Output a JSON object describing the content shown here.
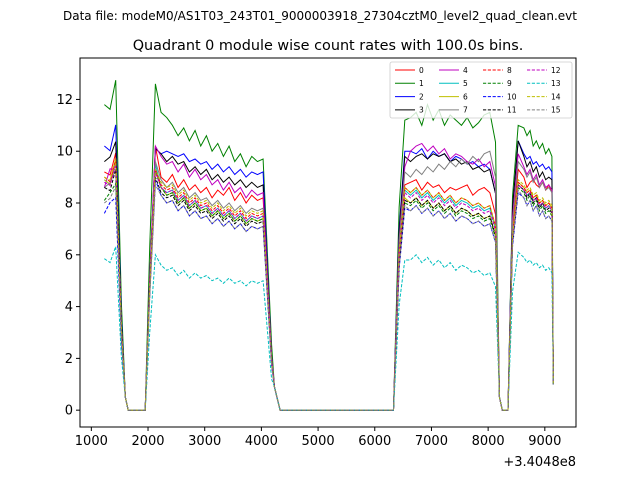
{
  "suptitle": "Data file: modeM0/AS1T03_243T01_9000003918_27304cztM0_level2_quad_clean.evt",
  "chart_data": {
    "type": "line",
    "title": "Quadrant 0 module wise count rates with 100.0s bins.",
    "xlabel": "",
    "ylabel": "",
    "offset_label": "+3.4048e8",
    "xlim": [
      800,
      9550
    ],
    "ylim": [
      -0.65,
      13.6
    ],
    "x_ticks": [
      1000,
      2000,
      3000,
      4000,
      5000,
      6000,
      7000,
      8000,
      9000
    ],
    "y_ticks": [
      0,
      2,
      4,
      6,
      8,
      10,
      12
    ],
    "grid": false,
    "legend_position": "top-right",
    "legend_columns": 4,
    "series_colors": [
      "#ff0000",
      "#008000",
      "#0000ff",
      "#000000",
      "#bf00bf",
      "#00bfbf",
      "#bfbf00",
      "#808080",
      "#ff0000",
      "#008000",
      "#0000ff",
      "#000000",
      "#bf00bf",
      "#00bfbf",
      "#bfbf00",
      "#808080"
    ],
    "series_dashed": [
      false,
      false,
      false,
      false,
      false,
      false,
      false,
      false,
      true,
      true,
      true,
      true,
      true,
      true,
      true,
      true
    ],
    "segments": [
      {
        "x_start": 1230,
        "dx": 100,
        "bases": [
          9.2,
          11.8,
          10.2,
          9.6,
          8.6,
          8.9,
          8.9,
          8.6,
          9.0,
          8.1,
          7.6,
          8.6,
          8.8,
          5.85,
          9.0,
          8.0
        ]
      },
      {
        "x_start": 2130,
        "dx": 100,
        "bases": [
          10.2,
          12.6,
          10.1,
          10.1,
          10.2,
          9.5,
          9.3,
          9.6,
          9.3,
          9.2,
          8.9,
          9.0,
          9.2,
          6.0,
          9.3,
          8.7
        ]
      },
      {
        "x_start": 6430,
        "dx": 100,
        "bases": [
          8.7,
          11.2,
          10.0,
          9.8,
          9.4,
          8.5,
          8.2,
          9.2,
          8.6,
          8.0,
          7.8,
          8.1,
          8.4,
          5.8,
          8.6,
          7.9
        ]
      },
      {
        "x_start": 8430,
        "dx": 100,
        "bases": [
          9.3,
          11.0,
          10.4,
          10.4,
          9.9,
          8.7,
          8.8,
          9.6,
          8.8,
          8.6,
          8.4,
          8.7,
          8.7,
          6.1,
          8.9,
          8.5
        ]
      }
    ],
    "series": [
      {
        "name": "0",
        "segments": [
          [
            9.0,
            8.8,
            9.1,
            8.6,
            8.9,
            8.5,
            8.7,
            8.4,
            8.6,
            8.2,
            8.5,
            8.3,
            8.6,
            8.1,
            8.4,
            8.0,
            8.3,
            8.1,
            8.2
          ],
          [
            8.8,
            8.9,
            8.5,
            8.8,
            8.6,
            8.7,
            8.4,
            8.6,
            8.5,
            8.6,
            8.7,
            8.3,
            8.5,
            8.6,
            8.4
          ],
          [
            9.0,
            8.6,
            8.8,
            8.9,
            8.7,
            8.6,
            8.8,
            8.5,
            8.7,
            8.4
          ]
        ]
      },
      {
        "name": "1",
        "segments": [
          [
            11.5,
            11.3,
            11.0,
            10.6,
            10.9,
            10.4,
            10.8,
            10.2,
            10.6,
            10.0,
            10.3,
            9.8,
            10.2,
            9.6,
            9.9,
            9.4,
            9.8,
            9.6,
            9.7
          ],
          [
            11.3,
            11.5,
            11.0,
            11.8,
            11.2,
            11.6,
            11.0,
            11.4,
            11.2,
            11.0,
            11.3,
            10.9,
            11.1,
            11.4,
            11.5
          ],
          [
            10.9,
            10.6,
            10.8,
            10.2,
            10.4,
            10.1,
            10.3,
            9.9,
            10.1,
            9.8
          ]
        ]
      },
      {
        "name": "2",
        "segments": [
          [
            9.9,
            10.0,
            9.9,
            9.8,
            9.9,
            9.6,
            9.7,
            9.5,
            9.6,
            9.3,
            9.5,
            9.2,
            9.4,
            9.1,
            9.3,
            9.0,
            9.2,
            9.1,
            9.2
          ],
          [
            10.0,
            9.9,
            10.1,
            9.7,
            10.0,
            9.8,
            9.9,
            9.6,
            9.8,
            9.7,
            9.5,
            9.6,
            9.4,
            9.5,
            9.3
          ],
          [
            9.9,
            9.7,
            9.8,
            9.5,
            9.6,
            9.4,
            9.5,
            9.3,
            9.4,
            9.2
          ]
        ]
      },
      {
        "name": "3",
        "segments": [
          [
            9.9,
            9.6,
            9.8,
            9.5,
            9.6,
            9.2,
            9.4,
            9.1,
            9.3,
            8.9,
            9.1,
            8.8,
            9.0,
            8.7,
            8.9,
            8.6,
            8.8,
            8.6,
            8.7
          ],
          [
            9.6,
            9.8,
            9.9,
            9.7,
            9.9,
            9.8,
            9.9,
            9.6,
            9.7,
            9.5,
            9.6,
            9.3,
            9.4,
            9.2,
            9.3
          ],
          [
            9.8,
            9.4,
            9.6,
            9.2,
            9.4,
            9.0,
            9.2,
            8.9,
            9.0,
            8.9
          ]
        ]
      },
      {
        "name": "4",
        "segments": [
          [
            9.8,
            9.5,
            9.6,
            9.2,
            9.5,
            9.0,
            9.3,
            8.9,
            9.1,
            8.7,
            8.9,
            8.5,
            8.8,
            8.4,
            8.6,
            8.2,
            8.5,
            8.3,
            8.4
          ],
          [
            10.0,
            10.2,
            10.3,
            10.0,
            10.2,
            9.9,
            10.1,
            9.7,
            9.9,
            9.8,
            9.6,
            9.5,
            9.7,
            9.4,
            9.6
          ],
          [
            9.4,
            9.1,
            9.3,
            8.9,
            9.1,
            8.7,
            8.9,
            8.6,
            8.7,
            8.5
          ]
        ]
      },
      {
        "name": "5",
        "segments": [
          [
            8.6,
            8.4,
            8.5,
            8.1,
            8.3,
            7.9,
            8.1,
            7.8,
            7.9,
            7.6,
            7.8,
            7.5,
            7.7,
            7.4,
            7.6,
            7.3,
            7.5,
            7.4,
            7.5
          ],
          [
            8.3,
            8.5,
            8.2,
            8.4,
            8.1,
            8.3,
            8.0,
            8.2,
            7.9,
            8.1,
            8.0,
            7.8,
            7.9,
            7.7,
            7.8
          ],
          [
            8.5,
            8.3,
            8.4,
            8.1,
            8.2,
            7.9,
            8.0,
            7.8,
            7.9,
            7.7
          ]
        ]
      },
      {
        "name": "6",
        "segments": [
          [
            8.6,
            8.3,
            8.4,
            8.0,
            8.2,
            7.8,
            8.0,
            7.7,
            7.8,
            7.5,
            7.7,
            7.4,
            7.6,
            7.3,
            7.5,
            7.2,
            7.4,
            7.3,
            7.4
          ],
          [
            8.0,
            8.2,
            7.9,
            8.1,
            7.8,
            8.0,
            7.7,
            7.9,
            7.6,
            7.8,
            7.7,
            7.5,
            7.6,
            7.4,
            7.5
          ],
          [
            8.6,
            8.4,
            8.5,
            8.2,
            8.3,
            8.0,
            8.1,
            7.9,
            8.0,
            7.8
          ]
        ]
      },
      {
        "name": "7",
        "segments": [
          [
            8.9,
            8.6,
            8.8,
            8.4,
            8.6,
            8.2,
            8.4,
            8.1,
            8.2,
            7.9,
            8.1,
            7.8,
            8.0,
            7.7,
            7.9,
            7.6,
            7.8,
            7.7,
            7.8
          ],
          [
            9.0,
            9.3,
            9.1,
            9.4,
            9.2,
            9.5,
            9.3,
            9.6,
            9.4,
            9.7,
            9.5,
            9.8,
            9.6,
            9.9,
            10.0
          ],
          [
            9.3,
            9.0,
            9.2,
            8.8,
            9.0,
            8.6,
            8.8,
            8.5,
            8.6,
            8.4
          ]
        ]
      },
      {
        "name": "8",
        "segments": [
          [
            8.7,
            8.5,
            8.6,
            8.2,
            8.4,
            8.0,
            8.2,
            7.9,
            8.0,
            7.7,
            7.9,
            7.6,
            7.8,
            7.5,
            7.7,
            7.4,
            7.6,
            7.5,
            7.6
          ],
          [
            8.4,
            8.6,
            8.3,
            8.5,
            8.2,
            8.4,
            8.1,
            8.3,
            8.0,
            8.2,
            8.1,
            7.9,
            8.0,
            7.8,
            7.9
          ],
          [
            8.6,
            8.4,
            8.5,
            8.2,
            8.3,
            8.0,
            8.1,
            7.9,
            8.0,
            7.8
          ]
        ]
      },
      {
        "name": "9",
        "segments": [
          [
            8.6,
            8.3,
            8.4,
            8.0,
            8.2,
            7.8,
            8.0,
            7.7,
            7.8,
            7.5,
            7.7,
            7.4,
            7.6,
            7.3,
            7.5,
            7.2,
            7.4,
            7.3,
            7.4
          ],
          [
            7.9,
            8.1,
            7.8,
            8.0,
            7.7,
            7.9,
            7.6,
            7.8,
            7.5,
            7.7,
            7.6,
            7.4,
            7.5,
            7.3,
            7.4
          ],
          [
            8.4,
            8.1,
            8.3,
            7.9,
            8.1,
            7.7,
            7.9,
            7.6,
            7.7,
            7.5
          ]
        ]
      },
      {
        "name": "10",
        "segments": [
          [
            8.3,
            8.0,
            8.1,
            7.7,
            7.9,
            7.5,
            7.7,
            7.4,
            7.5,
            7.2,
            7.4,
            7.1,
            7.3,
            7.0,
            7.2,
            6.9,
            7.1,
            7.0,
            7.1
          ],
          [
            7.7,
            7.9,
            7.6,
            7.8,
            7.5,
            7.7,
            7.4,
            7.6,
            7.3,
            7.5,
            7.4,
            7.2,
            7.3,
            7.1,
            7.2
          ],
          [
            8.2,
            7.9,
            8.1,
            7.7,
            7.9,
            7.5,
            7.7,
            7.4,
            7.5,
            7.3
          ]
        ]
      },
      {
        "name": "11",
        "segments": [
          [
            8.4,
            8.2,
            8.3,
            7.9,
            8.1,
            7.7,
            7.9,
            7.6,
            7.7,
            7.4,
            7.6,
            7.3,
            7.5,
            7.2,
            7.4,
            7.1,
            7.3,
            7.2,
            7.3
          ],
          [
            8.0,
            8.2,
            7.9,
            8.1,
            7.8,
            8.0,
            7.7,
            7.9,
            7.6,
            7.8,
            7.7,
            7.5,
            7.6,
            7.4,
            7.5
          ],
          [
            8.5,
            8.2,
            8.4,
            8.0,
            8.2,
            7.8,
            8.0,
            7.7,
            7.8,
            7.6
          ]
        ]
      },
      {
        "name": "12",
        "segments": [
          [
            8.6,
            8.4,
            8.5,
            8.1,
            8.3,
            7.9,
            8.1,
            7.8,
            7.9,
            7.6,
            7.8,
            7.5,
            7.7,
            7.4,
            7.6,
            7.3,
            7.5,
            7.4,
            7.5
          ],
          [
            8.2,
            8.4,
            8.1,
            8.3,
            8.0,
            8.2,
            7.9,
            8.1,
            7.8,
            8.0,
            7.9,
            7.7,
            7.8,
            7.6,
            7.7
          ],
          [
            8.5,
            8.3,
            8.4,
            8.1,
            8.2,
            7.9,
            8.0,
            7.8,
            7.9,
            7.7
          ]
        ]
      },
      {
        "name": "13",
        "segments": [
          [
            5.6,
            5.4,
            5.5,
            5.2,
            5.4,
            5.1,
            5.3,
            5.1,
            5.2,
            5.0,
            5.1,
            4.9,
            5.1,
            4.9,
            5.0,
            4.8,
            5.0,
            4.9,
            5.0
          ],
          [
            5.8,
            6.0,
            5.7,
            5.9,
            5.6,
            5.8,
            5.5,
            5.7,
            5.4,
            5.6,
            5.5,
            5.3,
            5.4,
            5.2,
            5.3
          ],
          [
            5.9,
            5.7,
            5.8,
            5.6,
            5.7,
            5.5,
            5.6,
            5.4,
            5.5,
            5.3
          ]
        ]
      },
      {
        "name": "14",
        "segments": [
          [
            8.8,
            8.6,
            8.7,
            8.3,
            8.5,
            8.1,
            8.3,
            8.0,
            8.1,
            7.8,
            8.0,
            7.7,
            7.9,
            7.6,
            7.8,
            7.5,
            7.7,
            7.6,
            7.7
          ],
          [
            8.4,
            8.6,
            8.3,
            8.5,
            8.2,
            8.4,
            8.1,
            8.3,
            8.0,
            8.2,
            8.1,
            7.9,
            8.0,
            7.8,
            7.9
          ],
          [
            8.7,
            8.5,
            8.6,
            8.3,
            8.4,
            8.1,
            8.2,
            8.0,
            8.1,
            7.9
          ]
        ]
      },
      {
        "name": "15",
        "segments": [
          [
            8.3,
            8.0,
            8.1,
            7.7,
            7.9,
            7.5,
            7.7,
            7.4,
            7.5,
            7.2,
            7.4,
            7.1,
            7.3,
            7.0,
            7.2,
            6.9,
            7.1,
            7.0,
            7.1
          ],
          [
            7.7,
            7.9,
            7.6,
            7.8,
            7.5,
            7.7,
            7.4,
            7.6,
            7.3,
            7.5,
            7.4,
            7.2,
            7.3,
            7.1,
            7.2
          ],
          [
            8.2,
            7.9,
            8.1,
            7.7,
            7.9,
            7.5,
            7.7,
            7.4,
            7.5,
            7.3
          ]
        ]
      }
    ]
  }
}
